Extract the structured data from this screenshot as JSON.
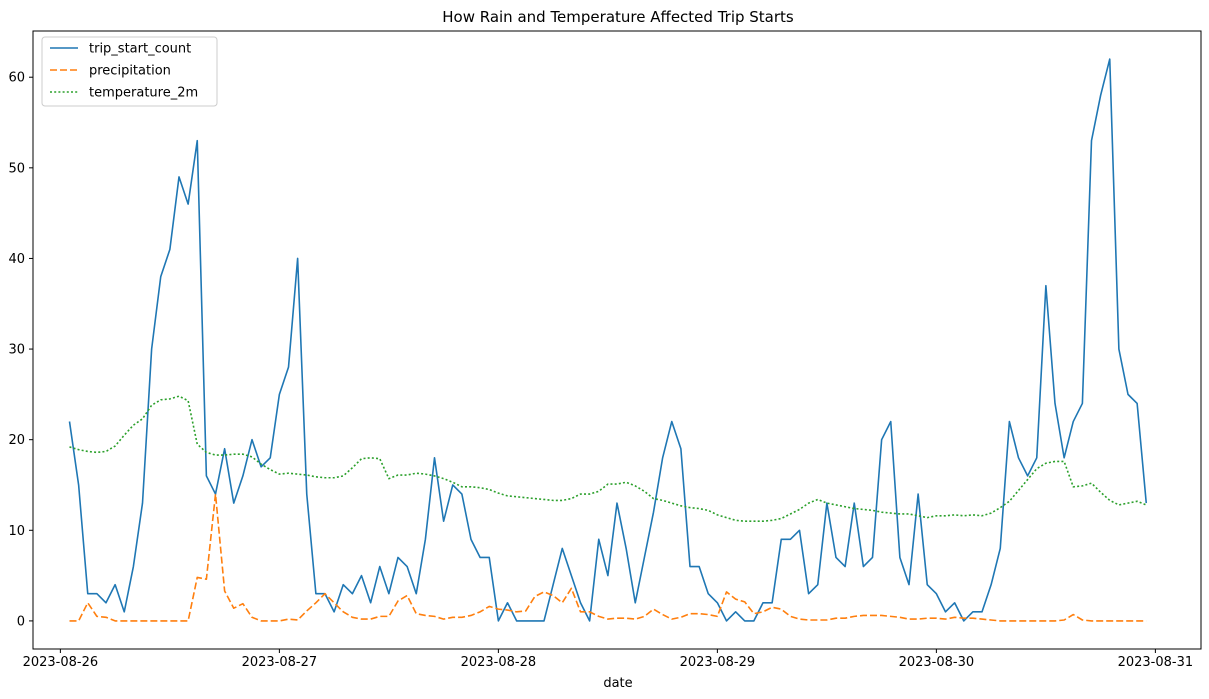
{
  "chart_data": {
    "type": "line",
    "title": "How Rain and Temperature Affected Trip Starts",
    "xlabel": "date",
    "ylabel": "",
    "x_start": "2023-08-26T01:00",
    "x_step_hours": 1,
    "xlim": [
      "2023-08-25T21:00",
      "2023-08-31T05:00"
    ],
    "ylim": [
      -3.1,
      65.1
    ],
    "x_ticks": [
      "2023-08-26",
      "2023-08-27",
      "2023-08-28",
      "2023-08-29",
      "2023-08-30",
      "2023-08-31"
    ],
    "y_ticks": [
      0,
      10,
      20,
      30,
      40,
      50,
      60
    ],
    "grid": false,
    "legend_position": "top-left",
    "series": [
      {
        "name": "trip_start_count",
        "color": "#1f77b4",
        "dash": "solid",
        "values": [
          22,
          15,
          3,
          3,
          2,
          4,
          1,
          6,
          13,
          30,
          38,
          41,
          49,
          46,
          53,
          16,
          14,
          19,
          13,
          16,
          20,
          17,
          18,
          25,
          28,
          40,
          14,
          3,
          3,
          1,
          4,
          3,
          5,
          2,
          6,
          3,
          7,
          6,
          3,
          9,
          18,
          11,
          15,
          14,
          9,
          7,
          7,
          0,
          2,
          0,
          0,
          0,
          0,
          4,
          8,
          5,
          2,
          0,
          9,
          5,
          13,
          8,
          2,
          7,
          12,
          18,
          22,
          19,
          6,
          6,
          3,
          2,
          0,
          1,
          0,
          0,
          2,
          2,
          9,
          9,
          10,
          3,
          4,
          13,
          7,
          6,
          13,
          6,
          7,
          20,
          22,
          7,
          4,
          14,
          4,
          3,
          1,
          2,
          0,
          1,
          1,
          4,
          8,
          22,
          18,
          16,
          18,
          37,
          24,
          18,
          22,
          24,
          53,
          58,
          62,
          30,
          25,
          24,
          13
        ]
      },
      {
        "name": "precipitation",
        "color": "#ff7f0e",
        "dash": "dashed",
        "values": [
          0,
          0,
          2,
          0.5,
          0.4,
          0,
          0,
          0,
          0,
          0,
          0,
          0,
          0,
          0,
          4.8,
          4.6,
          14,
          3.3,
          1.4,
          1.9,
          0.4,
          0,
          0,
          0,
          0.2,
          0.1,
          1.1,
          2,
          3,
          2,
          1,
          0.4,
          0.2,
          0.2,
          0.5,
          0.5,
          2.2,
          2.8,
          0.8,
          0.6,
          0.5,
          0.2,
          0.4,
          0.4,
          0.6,
          1,
          1.6,
          1.3,
          1.2,
          1,
          1.1,
          2.7,
          3.2,
          2.8,
          2,
          3.6,
          1,
          1,
          0.5,
          0.2,
          0.3,
          0.3,
          0.2,
          0.5,
          1.3,
          0.7,
          0.2,
          0.4,
          0.8,
          0.8,
          0.7,
          0.5,
          3.2,
          2.4,
          2.1,
          0.8,
          1,
          1.5,
          1.3,
          0.5,
          0.2,
          0.1,
          0.1,
          0.1,
          0.3,
          0.3,
          0.5,
          0.6,
          0.6,
          0.6,
          0.5,
          0.4,
          0.2,
          0.2,
          0.3,
          0.3,
          0.2,
          0.4,
          0.3,
          0.3,
          0.2,
          0.1,
          0,
          0,
          0,
          0,
          0,
          0,
          0,
          0.1,
          0.7,
          0.1,
          0,
          0,
          0,
          0,
          0,
          0,
          0
        ]
      },
      {
        "name": "temperature_2m",
        "color": "#2ca02c",
        "dash": "dotted",
        "values": [
          19.2,
          18.9,
          18.7,
          18.6,
          18.7,
          19.3,
          20.5,
          21.6,
          22.3,
          23.8,
          24.4,
          24.5,
          24.8,
          24.3,
          19.5,
          18.6,
          18.3,
          18.3,
          18.4,
          18.4,
          18.1,
          17.3,
          16.7,
          16.2,
          16.3,
          16.2,
          16.1,
          15.9,
          15.8,
          15.8,
          16,
          16.9,
          17.9,
          18,
          17.9,
          15.7,
          16.1,
          16.1,
          16.3,
          16.2,
          16,
          15.7,
          15.3,
          14.8,
          14.8,
          14.7,
          14.5,
          14.1,
          13.8,
          13.7,
          13.6,
          13.5,
          13.4,
          13.3,
          13.3,
          13.5,
          14,
          14,
          14.3,
          15.1,
          15.1,
          15.3,
          14.9,
          14.3,
          13.5,
          13.3,
          13,
          12.7,
          12.5,
          12.4,
          12.2,
          11.7,
          11.4,
          11.1,
          11,
          11,
          11,
          11.1,
          11.3,
          11.8,
          12.3,
          13,
          13.4,
          13,
          12.8,
          12.6,
          12.4,
          12.3,
          12.2,
          12,
          11.9,
          11.8,
          11.8,
          11.6,
          11.4,
          11.6,
          11.6,
          11.7,
          11.6,
          11.7,
          11.6,
          11.9,
          12.5,
          13.2,
          14.4,
          15.6,
          16.8,
          17.4,
          17.6,
          17.6,
          14.8,
          14.9,
          15.2,
          14.2,
          13.3,
          12.8,
          13,
          13.2,
          12.8
        ]
      }
    ]
  }
}
